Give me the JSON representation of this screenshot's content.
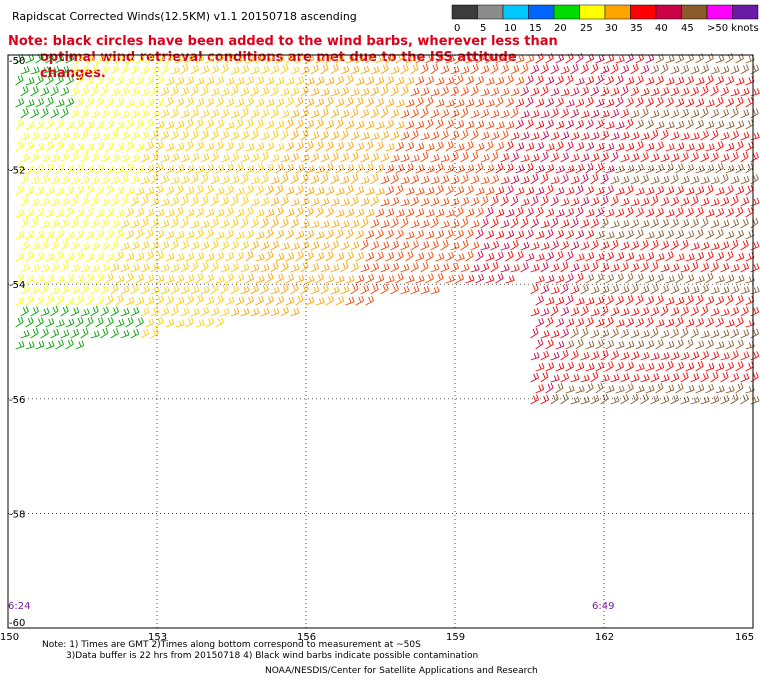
{
  "title": "Rapidscat Corrected Winds(12.5KM) v1.1 20150718 ascending",
  "legend": {
    "labels": [
      "0",
      "5",
      "10",
      "15",
      "20",
      "25",
      "30",
      "35",
      "40",
      "45",
      ">50 knots"
    ],
    "colors": [
      "#3c3c3c",
      "#8c8c8c",
      "#00c8ff",
      "#0064ff",
      "#00dc00",
      "#ffff00",
      "#ffa500",
      "#ff0000",
      "#cc0044",
      "#8b5a2b",
      "#ff00ff",
      "#6a1aa6"
    ]
  },
  "note": {
    "line1": "Note: black circles have been added to the wind barbs, wherever less than",
    "line2": "optimal wind retrieval conditions are met due to the ISS attitude changes."
  },
  "map": {
    "lat_labels": [
      "-50",
      "-52",
      "-54",
      "-56",
      "-58",
      "-60"
    ],
    "lon_labels": [
      "150",
      "153",
      "156",
      "159",
      "162",
      "165"
    ],
    "time_labels": [
      "6:24",
      "6:49"
    ]
  },
  "footer": {
    "line1": "Note: 1) Times are GMT 2)Times along bottom correspond to measurement at ~50S",
    "line2": "3)Data buffer is 22 hrs from 20150718 4) Black wind barbs indicate possible contamination",
    "line3": "NOAA/NESDIS/Center for Satellite Applications and Research"
  }
}
